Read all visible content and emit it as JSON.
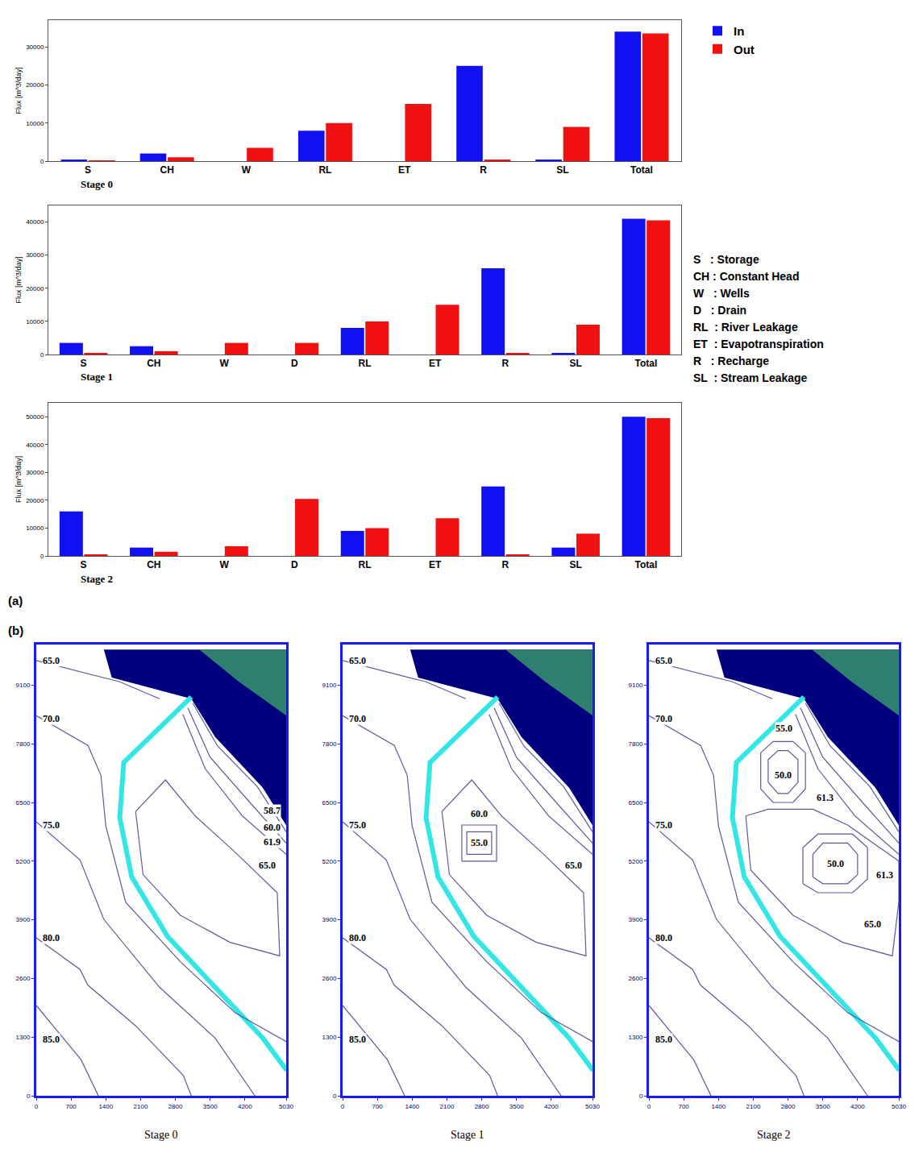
{
  "chart_data": [
    {
      "type": "bar",
      "label": "Stage 0",
      "y_label": "Flux [m^3/day]",
      "grid": false,
      "legend": "upper right",
      "categories": [
        "S",
        "CH",
        "W",
        "RL",
        "ET",
        "R",
        "SL",
        "Total"
      ],
      "series": [
        {
          "name": "In",
          "color": "#1010f0",
          "values": [
            300,
            2000,
            0,
            8000,
            0,
            25000,
            300,
            34000
          ]
        },
        {
          "name": "Out",
          "color": "#f01010",
          "values": [
            200,
            1000,
            3500,
            10000,
            15000,
            300,
            9000,
            33500
          ]
        }
      ],
      "ylim": [
        0,
        37000
      ],
      "yticks": [
        0,
        10000,
        20000,
        30000
      ]
    },
    {
      "type": "bar",
      "label": "Stage 1",
      "y_label": "Flux [m^3/day]",
      "grid": false,
      "categories": [
        "S",
        "CH",
        "W",
        "D",
        "RL",
        "ET",
        "R",
        "SL",
        "Total"
      ],
      "series": [
        {
          "name": "In",
          "color": "#1010f0",
          "values": [
            3500,
            2500,
            0,
            0,
            8000,
            0,
            26000,
            400,
            41000
          ]
        },
        {
          "name": "Out",
          "color": "#f01010",
          "values": [
            500,
            1000,
            3500,
            3500,
            10000,
            15000,
            300,
            9000,
            40500
          ]
        }
      ],
      "ylim": [
        0,
        45000
      ],
      "yticks": [
        0,
        10000,
        20000,
        30000,
        40000
      ]
    },
    {
      "type": "bar",
      "label": "Stage 2",
      "y_label": "Flux [m^3/day]",
      "grid": false,
      "categories": [
        "S",
        "CH",
        "W",
        "D",
        "RL",
        "ET",
        "R",
        "SL",
        "Total"
      ],
      "series": [
        {
          "name": "In",
          "color": "#1010f0",
          "values": [
            16000,
            3000,
            0,
            0,
            9000,
            0,
            25000,
            3000,
            50000
          ]
        },
        {
          "name": "Out",
          "color": "#f01010",
          "values": [
            500,
            1500,
            3500,
            20500,
            10000,
            13500,
            500,
            8000,
            49500
          ]
        }
      ],
      "ylim": [
        0,
        55000
      ],
      "yticks": [
        0,
        10000,
        20000,
        30000,
        40000,
        50000
      ]
    }
  ],
  "panel_labels": [
    "(a)",
    "(b)"
  ],
  "key": [
    "S   : Storage",
    "CH : Constant Head",
    "W   : Wells",
    "D   : Drain",
    "RL  : River Leakage",
    "ET  : Evapotranspiration",
    "R   : Recharge",
    "SL  : Stream Leakage"
  ],
  "maps": {
    "type": "map",
    "xlim": [
      0,
      5030
    ],
    "xticks": [
      0,
      700,
      1400,
      2100,
      2800,
      3500,
      4200,
      5030
    ],
    "ylim": [
      0,
      10000
    ],
    "yticks": [
      0,
      1300,
      2600,
      3900,
      5200,
      6500,
      7800,
      9100
    ],
    "sea": {
      "color": "#00007f",
      "x": [
        1360,
        5040,
        5040,
        4560,
        3600,
        3120,
        1520
      ],
      "y": [
        9889,
        9889,
        5978,
        6824,
        7952,
        8798,
        9268
      ]
    },
    "land": {
      "color": "#2e7f70",
      "x": [
        3280,
        5040,
        5040,
        4080
      ],
      "y": [
        9889,
        9889,
        8422,
        9174
      ]
    },
    "stream": {
      "color": "#33e6e6",
      "x": [
        3120,
        2480,
        1760,
        1680,
        1920,
        2640,
        3600,
        4560,
        5040
      ],
      "y": [
        8836,
        8140,
        7388,
        6166,
        4850,
        3534,
        2406,
        1278,
        564
      ]
    },
    "regional_contours": [
      {
        "x": [
          0,
          900,
          1250
        ],
        "y": [
          2000,
          800,
          0
        ]
      },
      {
        "x": [
          0,
          880,
          1040,
          2000,
          2960,
          3120
        ],
        "y": [
          3500,
          2800,
          2450,
          1550,
          450,
          0
        ]
      },
      {
        "x": [
          0,
          880,
          1360,
          2480,
          3600,
          4400
        ],
        "y": [
          6072,
          5226,
          3910,
          2406,
          1278,
          0
        ]
      },
      {
        "x": [
          0,
          1040,
          1300,
          1400,
          1800,
          2900,
          4000,
          5030
        ],
        "y": [
          8422,
          7764,
          7106,
          5978,
          4286,
          2970,
          1842,
          1200
        ]
      },
      {
        "x": [
          0,
          1680,
          2480
        ],
        "y": [
          9644,
          9174,
          8798
        ]
      },
      {
        "x": [
          3150,
          3650,
          4450,
          5030
        ],
        "y": [
          8700,
          7750,
          6850,
          5850
        ]
      },
      {
        "x": [
          3050,
          3500,
          4300,
          5030
        ],
        "y": [
          8600,
          7500,
          6500,
          5600
        ]
      },
      {
        "x": [
          2950,
          3400,
          4150,
          5030
        ],
        "y": [
          8450,
          7250,
          6200,
          5350
        ]
      }
    ],
    "regional_labels": [
      {
        "text": "65.0",
        "x": 300,
        "y": 9650
      },
      {
        "text": "70.0",
        "x": 300,
        "y": 8350
      },
      {
        "text": "75.0",
        "x": 300,
        "y": 6000
      },
      {
        "text": "80.0",
        "x": 300,
        "y": 3500
      },
      {
        "text": "85.0",
        "x": 300,
        "y": 1250
      }
    ],
    "stages": [
      {
        "label": "Stage 0",
        "contours": [
          {
            "x": [
              2000,
              2150,
              2900,
              3900,
              4900,
              4850,
              4000,
              3200,
              2600,
              2000
            ],
            "y": [
              6300,
              4900,
              4000,
              3400,
              3100,
              4500,
              5400,
              6200,
              7000,
              6300
            ]
          }
        ],
        "labels": [
          {
            "text": "58.7",
            "x": 4750,
            "y": 6330
          },
          {
            "text": "60.0",
            "x": 4750,
            "y": 5950
          },
          {
            "text": "61.9",
            "x": 4750,
            "y": 5620
          },
          {
            "text": "65.0",
            "x": 4650,
            "y": 5100
          }
        ]
      },
      {
        "label": "Stage 1",
        "contours": [
          {
            "x": [
              2000,
              2150,
              2900,
              3900,
              4900,
              4850,
              4000,
              3200,
              2600,
              2000
            ],
            "y": [
              6300,
              4900,
              4000,
              3400,
              3100,
              4500,
              5400,
              6200,
              7000,
              6300
            ]
          },
          {
            "x": [
              2400,
              3100,
              3100,
              2400,
              2400
            ],
            "y": [
              5200,
              5200,
              6000,
              6000,
              5200
            ]
          },
          {
            "x": [
              2500,
              3000,
              3000,
              2500,
              2500
            ],
            "y": [
              5350,
              5350,
              5850,
              5850,
              5350
            ]
          }
        ],
        "labels": [
          {
            "text": "60.0",
            "x": 2750,
            "y": 6250
          },
          {
            "text": "55.0",
            "x": 2750,
            "y": 5600
          },
          {
            "text": "65.0",
            "x": 4650,
            "y": 5100
          }
        ]
      },
      {
        "label": "Stage 2",
        "contours": [
          {
            "x": [
              1950,
              2050,
              2900,
              3900,
              4900,
              5030,
              5030,
              4000,
              3300,
              2400,
              1950
            ],
            "y": [
              6200,
              5000,
              4000,
              3400,
              3100,
              4300,
              5200,
              6000,
              6350,
              6350,
              6200
            ]
          },
          {
            "x": [
              2250,
              2250,
              2500,
              2900,
              3150,
              3150,
              2900,
              2500,
              2250
            ],
            "y": [
              6800,
              7600,
              7850,
              7850,
              7600,
              6800,
              6500,
              6500,
              6800
            ]
          },
          {
            "x": [
              2400,
              2400,
              2600,
              2800,
              3000,
              3000,
              2800,
              2600,
              2400
            ],
            "y": [
              6950,
              7450,
              7650,
              7650,
              7450,
              6950,
              6700,
              6700,
              6950
            ]
          },
          {
            "x": [
              3100,
              3100,
              3400,
              4100,
              4400,
              4400,
              4100,
              3400,
              3100
            ],
            "y": [
              4700,
              5500,
              5800,
              5800,
              5500,
              4800,
              4500,
              4500,
              4700
            ]
          },
          {
            "x": [
              3300,
              3300,
              3500,
              4000,
              4200,
              4200,
              4000,
              3500,
              3300
            ],
            "y": [
              4850,
              5350,
              5600,
              5600,
              5350,
              4900,
              4700,
              4700,
              4850
            ]
          }
        ],
        "labels": [
          {
            "text": "55.0",
            "x": 2720,
            "y": 8150
          },
          {
            "text": "61.3",
            "x": 3550,
            "y": 6600
          },
          {
            "text": "50.0",
            "x": 2700,
            "y": 7100
          },
          {
            "text": "50.0",
            "x": 3750,
            "y": 5150
          },
          {
            "text": "61.3",
            "x": 4750,
            "y": 4900
          },
          {
            "text": "65.0",
            "x": 4500,
            "y": 3800
          }
        ]
      }
    ]
  }
}
